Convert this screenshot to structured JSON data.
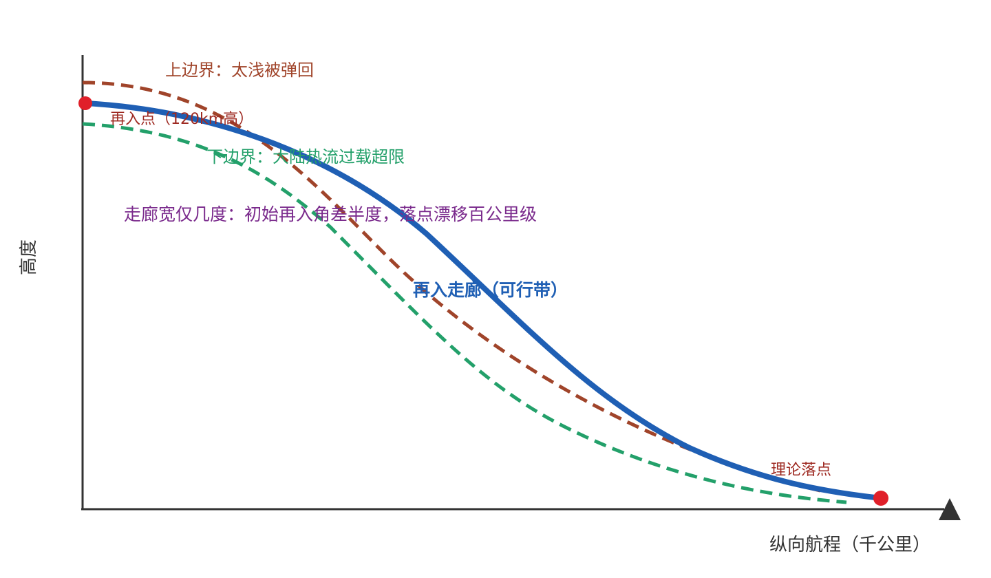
{
  "axes": {
    "y_label": "高度",
    "x_label": "纵向航程（千公里）"
  },
  "curves": {
    "upper_boundary": {
      "label": "上边界：太浅被弹回",
      "color": "#a0442a",
      "style": "dashed"
    },
    "lower_boundary": {
      "label": "下边界：大陆热流过载超限",
      "color": "#23a06a",
      "style": "dashed"
    },
    "corridor": {
      "label": "再入走廊（可行带）",
      "color": "#1f5fb4",
      "style": "solid"
    }
  },
  "points": {
    "entry": {
      "label": "再入点（120km高）",
      "color": "#e0202a"
    },
    "landing": {
      "label": "理论落点",
      "color": "#e0202a"
    }
  },
  "annotation": {
    "corridor_width": "走廊宽仅几度：初始再入角差半度，落点漂移百公里级"
  },
  "colors": {
    "axis": "#333333",
    "label_dark_red": "#9e2a22",
    "label_purple": "#7a2a8c"
  }
}
